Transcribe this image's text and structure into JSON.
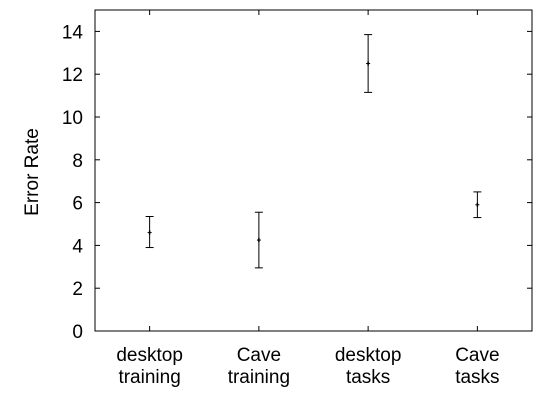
{
  "chart_data": {
    "type": "scatter",
    "title": "",
    "xlabel": "",
    "ylabel": "Error Rate",
    "ylim": [
      0,
      15
    ],
    "yticks": [
      0,
      2,
      4,
      6,
      8,
      10,
      12,
      14
    ],
    "grid": false,
    "categories": [
      [
        "desktop",
        "training"
      ],
      [
        "Cave",
        "training"
      ],
      [
        "desktop",
        "tasks"
      ],
      [
        "Cave",
        "tasks"
      ]
    ],
    "series": [
      {
        "points": [
          {
            "mean": 4.6,
            "low": 3.9,
            "high": 5.35
          },
          {
            "mean": 4.25,
            "low": 2.95,
            "high": 5.55
          },
          {
            "mean": 12.5,
            "low": 11.15,
            "high": 13.85
          },
          {
            "mean": 5.9,
            "low": 5.3,
            "high": 6.5
          }
        ]
      }
    ],
    "colors": {
      "marks": "#000000",
      "axis": "#000000"
    }
  }
}
